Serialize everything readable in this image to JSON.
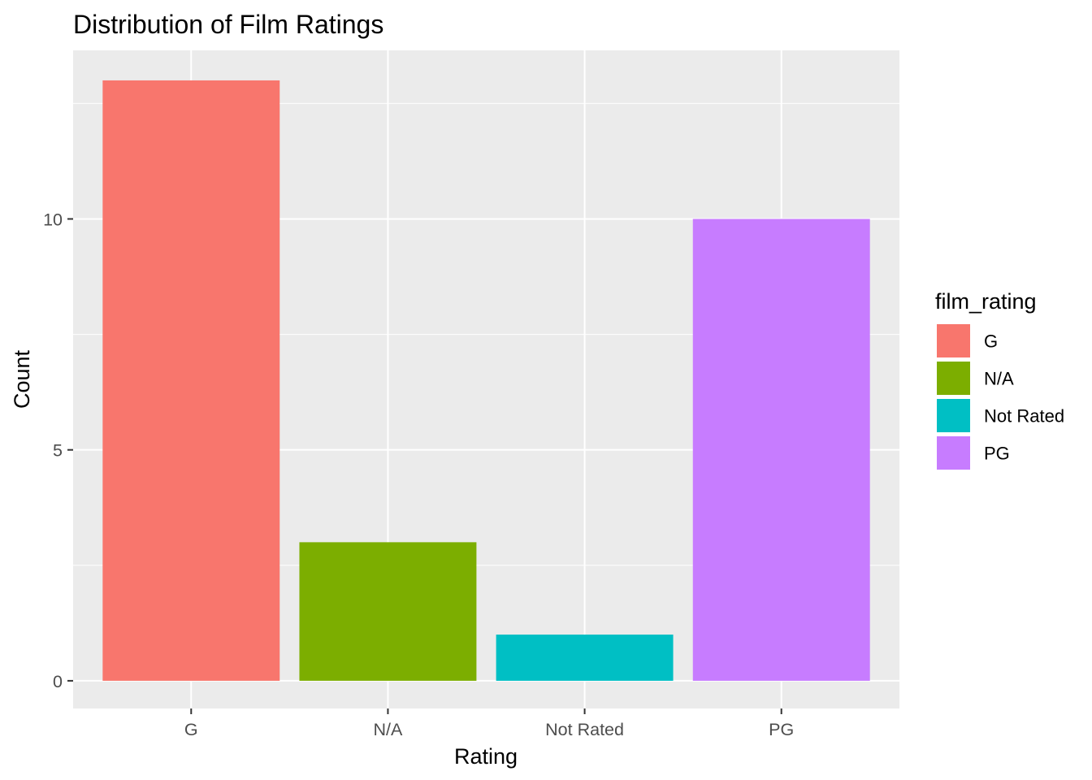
{
  "chart_data": {
    "type": "bar",
    "title": "Distribution of Film Ratings",
    "xlabel": "Rating",
    "ylabel": "Count",
    "categories": [
      "G",
      "N/A",
      "Not Rated",
      "PG"
    ],
    "values": [
      13,
      3,
      1,
      10
    ],
    "colors": [
      "#F8766D",
      "#7CAE00",
      "#00BFC4",
      "#C77CFF"
    ],
    "ylim": [
      -0.6,
      13.65
    ],
    "yticks": [
      0,
      5,
      10
    ],
    "ytick_labels": [
      "0",
      "5",
      "10"
    ],
    "grid": true,
    "panel_background": "#EBEBEB",
    "grid_color": "#FFFFFF",
    "legend": {
      "title": "film_rating",
      "position": "right",
      "entries": [
        "G",
        "N/A",
        "Not Rated",
        "PG"
      ]
    }
  }
}
